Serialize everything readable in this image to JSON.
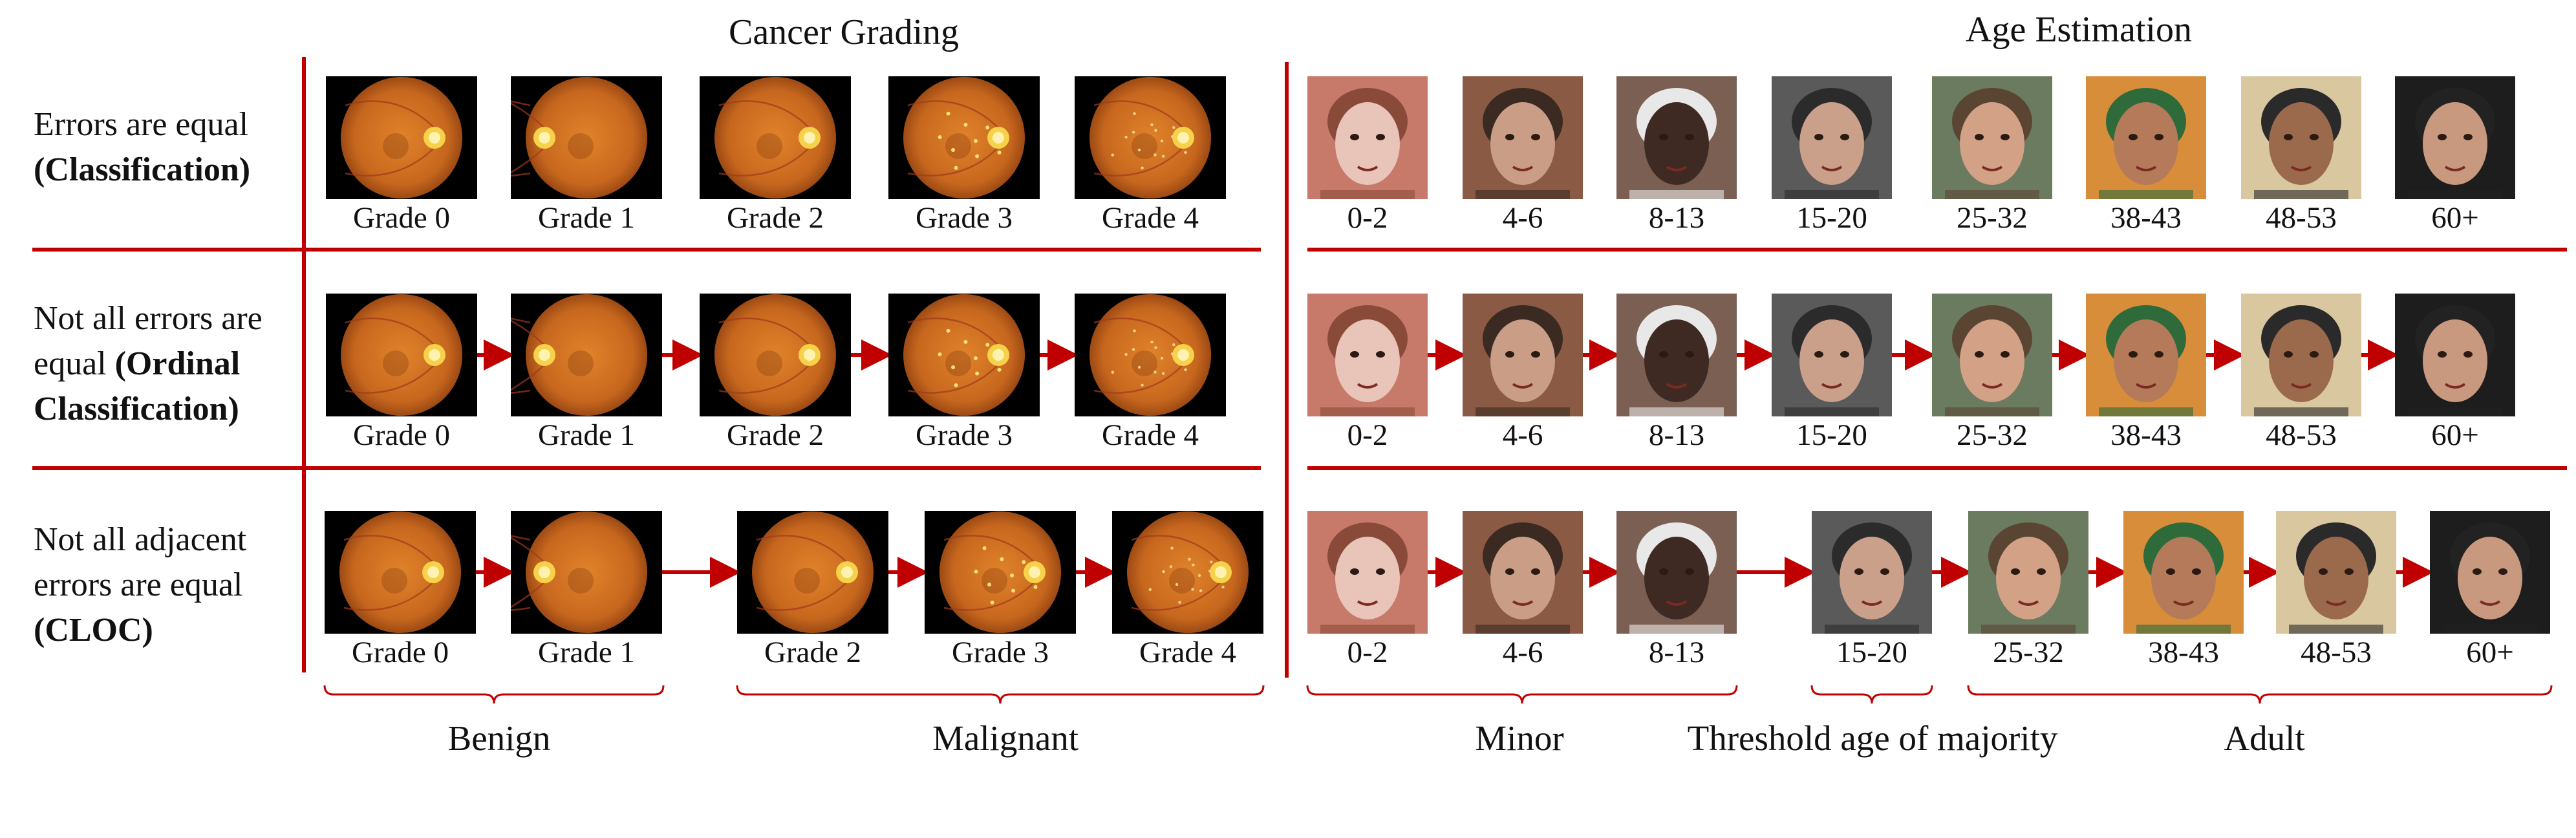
{
  "titles": {
    "left": "Cancer Grading",
    "right": "Age Estimation"
  },
  "rows": [
    {
      "label_plain_1": "Errors are equal",
      "label_bold_1": "(Classification)"
    },
    {
      "label_plain_1": "Not all errors are",
      "label_plain_2": "equal ",
      "label_bold_2": "(Ordinal",
      "label_bold_3": "Classification)"
    },
    {
      "label_plain_1": "Not all adjacent",
      "label_plain_2": "errors are equal",
      "label_bold_3": "(CLOC)"
    }
  ],
  "grades": [
    "Grade 0",
    "Grade 1",
    "Grade 2",
    "Grade 3",
    "Grade 4"
  ],
  "ages": [
    "0-2",
    "4-6",
    "8-13",
    "15-20",
    "25-32",
    "38-43",
    "48-53",
    "60+"
  ],
  "groups": {
    "benign": "Benign",
    "malignant": "Malignant",
    "minor": "Minor",
    "threshold": "Threshold age of majority",
    "adult": "Adult"
  },
  "colors": {
    "accent": "#c00000",
    "text": "#111111"
  },
  "icons": {
    "fundus": "retina-fundus-photo",
    "face": "face-photo"
  }
}
